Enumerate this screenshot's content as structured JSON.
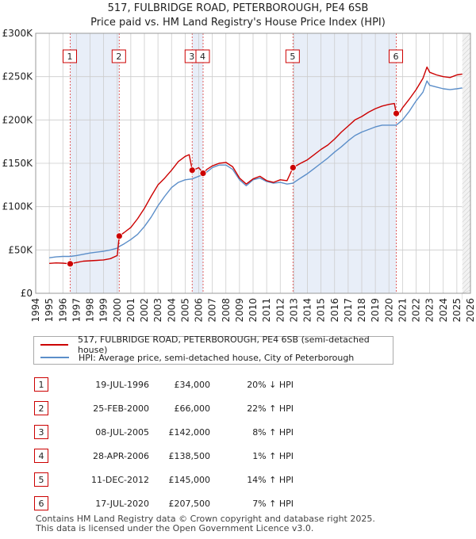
{
  "header": {
    "title_line1": "517, FULBRIDGE ROAD, PETERBOROUGH, PE4 6SB",
    "title_line2": "Price paid vs. HM Land Registry's House Price Index (HPI)"
  },
  "colors": {
    "price_line": "#cc0000",
    "hpi_line": "#5b8ec9",
    "band": "#e8eef8",
    "grid": "#cccccc"
  },
  "chart_data": {
    "type": "line",
    "title": "517, FULBRIDGE ROAD, PETERBOROUGH, PE4 6SB - Price paid vs. HM Land Registry's House Price Index (HPI)",
    "xlim": [
      1994,
      2026
    ],
    "ylim": [
      0,
      300000
    ],
    "y_ticks": [
      0,
      50000,
      100000,
      150000,
      200000,
      250000,
      300000
    ],
    "y_tick_labels": [
      "£0",
      "£50K",
      "£100K",
      "£150K",
      "£200K",
      "£250K",
      "£300K"
    ],
    "x_ticks": [
      1994,
      1995,
      1996,
      1997,
      1998,
      1999,
      2000,
      2001,
      2002,
      2003,
      2004,
      2005,
      2006,
      2007,
      2008,
      2009,
      2010,
      2011,
      2012,
      2013,
      2014,
      2015,
      2016,
      2017,
      2018,
      2019,
      2020,
      2021,
      2022,
      2023,
      2024,
      2025,
      2026
    ],
    "x_tick_labels": [
      "1994",
      "1995",
      "1996",
      "1997",
      "1998",
      "1999",
      "2000",
      "2001",
      "2002",
      "2003",
      "2004",
      "2005",
      "2006",
      "2007",
      "2008",
      "2009",
      "2010",
      "2011",
      "2012",
      "2013",
      "2014",
      "2015",
      "2016",
      "2017",
      "2018",
      "2019",
      "2020",
      "2021",
      "2022",
      "2023",
      "2024",
      "2025",
      "2026"
    ],
    "series": [
      {
        "name": "517, FULBRIDGE ROAD, PETERBOROUGH, PE4 6SB (semi-detached house)",
        "color": "#cc0000",
        "points": [
          [
            1995.0,
            34500
          ],
          [
            1995.5,
            35000
          ],
          [
            1996.0,
            34800
          ],
          [
            1996.54,
            34000
          ],
          [
            1997.0,
            35500
          ],
          [
            1997.5,
            37000
          ],
          [
            1998.0,
            37500
          ],
          [
            1998.5,
            38000
          ],
          [
            1999.0,
            38500
          ],
          [
            1999.5,
            40000
          ],
          [
            2000.0,
            43500
          ],
          [
            2000.15,
            66000
          ],
          [
            2000.5,
            70000
          ],
          [
            2001.0,
            76000
          ],
          [
            2001.5,
            86000
          ],
          [
            2002.0,
            98000
          ],
          [
            2002.5,
            112000
          ],
          [
            2003.0,
            125000
          ],
          [
            2003.5,
            133000
          ],
          [
            2004.0,
            142000
          ],
          [
            2004.5,
            152000
          ],
          [
            2005.0,
            158000
          ],
          [
            2005.3,
            160000
          ],
          [
            2005.52,
            142000
          ],
          [
            2005.8,
            143500
          ],
          [
            2006.0,
            145000
          ],
          [
            2006.32,
            138500
          ],
          [
            2006.6,
            143000
          ],
          [
            2007.0,
            147000
          ],
          [
            2007.5,
            150000
          ],
          [
            2008.0,
            151000
          ],
          [
            2008.5,
            146000
          ],
          [
            2009.0,
            133000
          ],
          [
            2009.5,
            126000
          ],
          [
            2010.0,
            132000
          ],
          [
            2010.5,
            135000
          ],
          [
            2011.0,
            130000
          ],
          [
            2011.5,
            128000
          ],
          [
            2012.0,
            131000
          ],
          [
            2012.5,
            130000
          ],
          [
            2012.94,
            145000
          ],
          [
            2013.5,
            150000
          ],
          [
            2014.0,
            154000
          ],
          [
            2014.5,
            160000
          ],
          [
            2015.0,
            166000
          ],
          [
            2015.5,
            171000
          ],
          [
            2016.0,
            178000
          ],
          [
            2016.5,
            186000
          ],
          [
            2017.0,
            193000
          ],
          [
            2017.5,
            200000
          ],
          [
            2018.0,
            204000
          ],
          [
            2018.5,
            209000
          ],
          [
            2019.0,
            213000
          ],
          [
            2019.5,
            216000
          ],
          [
            2020.0,
            218000
          ],
          [
            2020.4,
            219000
          ],
          [
            2020.54,
            207500
          ],
          [
            2020.8,
            209000
          ],
          [
            2021.0,
            214000
          ],
          [
            2021.5,
            224000
          ],
          [
            2022.0,
            235000
          ],
          [
            2022.5,
            248000
          ],
          [
            2022.8,
            261000
          ],
          [
            2023.0,
            255000
          ],
          [
            2023.5,
            252000
          ],
          [
            2024.0,
            250000
          ],
          [
            2024.5,
            249000
          ],
          [
            2025.0,
            252000
          ],
          [
            2025.4,
            253000
          ]
        ]
      },
      {
        "name": "HPI: Average price, semi-detached house, City of Peterborough",
        "color": "#5b8ec9",
        "points": [
          [
            1995.0,
            41000
          ],
          [
            1995.5,
            42000
          ],
          [
            1996.0,
            42500
          ],
          [
            1996.54,
            42500
          ],
          [
            1997.0,
            43500
          ],
          [
            1997.5,
            45000
          ],
          [
            1998.0,
            46500
          ],
          [
            1998.5,
            47500
          ],
          [
            1999.0,
            48500
          ],
          [
            1999.5,
            50000
          ],
          [
            2000.0,
            52000
          ],
          [
            2000.15,
            54000
          ],
          [
            2000.5,
            57000
          ],
          [
            2001.0,
            62000
          ],
          [
            2001.5,
            68000
          ],
          [
            2002.0,
            77000
          ],
          [
            2002.5,
            88000
          ],
          [
            2003.0,
            101000
          ],
          [
            2003.5,
            112000
          ],
          [
            2004.0,
            122000
          ],
          [
            2004.5,
            128000
          ],
          [
            2005.0,
            131000
          ],
          [
            2005.52,
            132000
          ],
          [
            2006.0,
            135000
          ],
          [
            2006.32,
            137000
          ],
          [
            2006.6,
            140000
          ],
          [
            2007.0,
            145000
          ],
          [
            2007.5,
            148000
          ],
          [
            2008.0,
            148000
          ],
          [
            2008.5,
            143000
          ],
          [
            2009.0,
            131000
          ],
          [
            2009.5,
            124000
          ],
          [
            2010.0,
            131000
          ],
          [
            2010.5,
            133000
          ],
          [
            2011.0,
            129000
          ],
          [
            2011.5,
            127000
          ],
          [
            2012.0,
            128000
          ],
          [
            2012.5,
            126000
          ],
          [
            2012.94,
            127000
          ],
          [
            2013.5,
            133000
          ],
          [
            2014.0,
            138000
          ],
          [
            2014.5,
            144000
          ],
          [
            2015.0,
            150000
          ],
          [
            2015.5,
            156000
          ],
          [
            2016.0,
            163000
          ],
          [
            2016.5,
            169000
          ],
          [
            2017.0,
            176000
          ],
          [
            2017.5,
            182000
          ],
          [
            2018.0,
            186000
          ],
          [
            2018.5,
            189000
          ],
          [
            2019.0,
            192000
          ],
          [
            2019.5,
            194000
          ],
          [
            2020.0,
            194000
          ],
          [
            2020.54,
            194000
          ],
          [
            2021.0,
            200000
          ],
          [
            2021.5,
            210000
          ],
          [
            2022.0,
            222000
          ],
          [
            2022.5,
            232000
          ],
          [
            2022.8,
            245000
          ],
          [
            2023.0,
            240000
          ],
          [
            2023.5,
            238000
          ],
          [
            2024.0,
            236000
          ],
          [
            2024.5,
            235000
          ],
          [
            2025.0,
            236000
          ],
          [
            2025.4,
            237000
          ]
        ]
      }
    ],
    "transactions": [
      {
        "n": "1",
        "x": 1996.54,
        "price": 34000
      },
      {
        "n": "2",
        "x": 2000.15,
        "price": 66000
      },
      {
        "n": "3",
        "x": 2005.52,
        "price": 142000
      },
      {
        "n": "4",
        "x": 2006.32,
        "price": 138500
      },
      {
        "n": "5",
        "x": 2012.94,
        "price": 145000
      },
      {
        "n": "6",
        "x": 2020.54,
        "price": 207500
      }
    ],
    "bands": [
      [
        1996.54,
        2000.15
      ],
      [
        2005.52,
        2006.32
      ],
      [
        2012.94,
        2020.54
      ]
    ]
  },
  "legend": {
    "price_label": "517, FULBRIDGE ROAD, PETERBOROUGH, PE4 6SB (semi-detached house)",
    "hpi_label": "HPI: Average price, semi-detached house, City of Peterborough"
  },
  "table": {
    "rows": [
      {
        "n": "1",
        "date": "19-JUL-1996",
        "price": "£34,000",
        "hpi": "20% ↓ HPI"
      },
      {
        "n": "2",
        "date": "25-FEB-2000",
        "price": "£66,000",
        "hpi": "22% ↑ HPI"
      },
      {
        "n": "3",
        "date": "08-JUL-2005",
        "price": "£142,000",
        "hpi": "8% ↑ HPI"
      },
      {
        "n": "4",
        "date": "28-APR-2006",
        "price": "£138,500",
        "hpi": "1% ↑ HPI"
      },
      {
        "n": "5",
        "date": "11-DEC-2012",
        "price": "£145,000",
        "hpi": "14% ↑ HPI"
      },
      {
        "n": "6",
        "date": "17-JUL-2020",
        "price": "£207,500",
        "hpi": "7% ↑ HPI"
      }
    ]
  },
  "footer": {
    "line1": "Contains HM Land Registry data © Crown copyright and database right 2025.",
    "line2": "This data is licensed under the Open Government Licence v3.0."
  }
}
